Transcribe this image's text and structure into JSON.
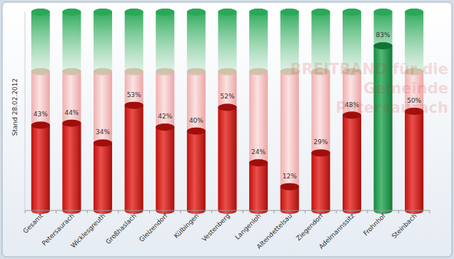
{
  "chart_data": {
    "type": "bar",
    "title": "BREITBAND für die Gemeinde Petersaurach",
    "subtitle": "Stand 28.02.2012",
    "categories": [
      "Gesamt",
      "Petersaurach",
      "Wicklesgreuth",
      "Großhaslach",
      "Gleizendorf",
      "Külbingen",
      "Vestenberg",
      "Langenloh",
      "Altendettelsau",
      "Ziegendorf",
      "Adelmannssitz",
      "Frohnhof",
      "Steinbach"
    ],
    "values": [
      43,
      44,
      34,
      53,
      42,
      40,
      52,
      24,
      12,
      29,
      48,
      83,
      50
    ],
    "value_labels": [
      "43%",
      "44%",
      "34%",
      "53%",
      "42%",
      "40%",
      "52%",
      "24%",
      "12%",
      "29%",
      "48%",
      "83%",
      "50%"
    ],
    "colors": [
      "#e3140f",
      "#e3140f",
      "#e3140f",
      "#e3140f",
      "#e3140f",
      "#e3140f",
      "#e3140f",
      "#e3140f",
      "#e3140f",
      "#e3140f",
      "#e3140f",
      "#17a34a",
      "#e3140f"
    ],
    "ylim": [
      0,
      100
    ],
    "data_labels": true,
    "tick_labels": "x"
  }
}
